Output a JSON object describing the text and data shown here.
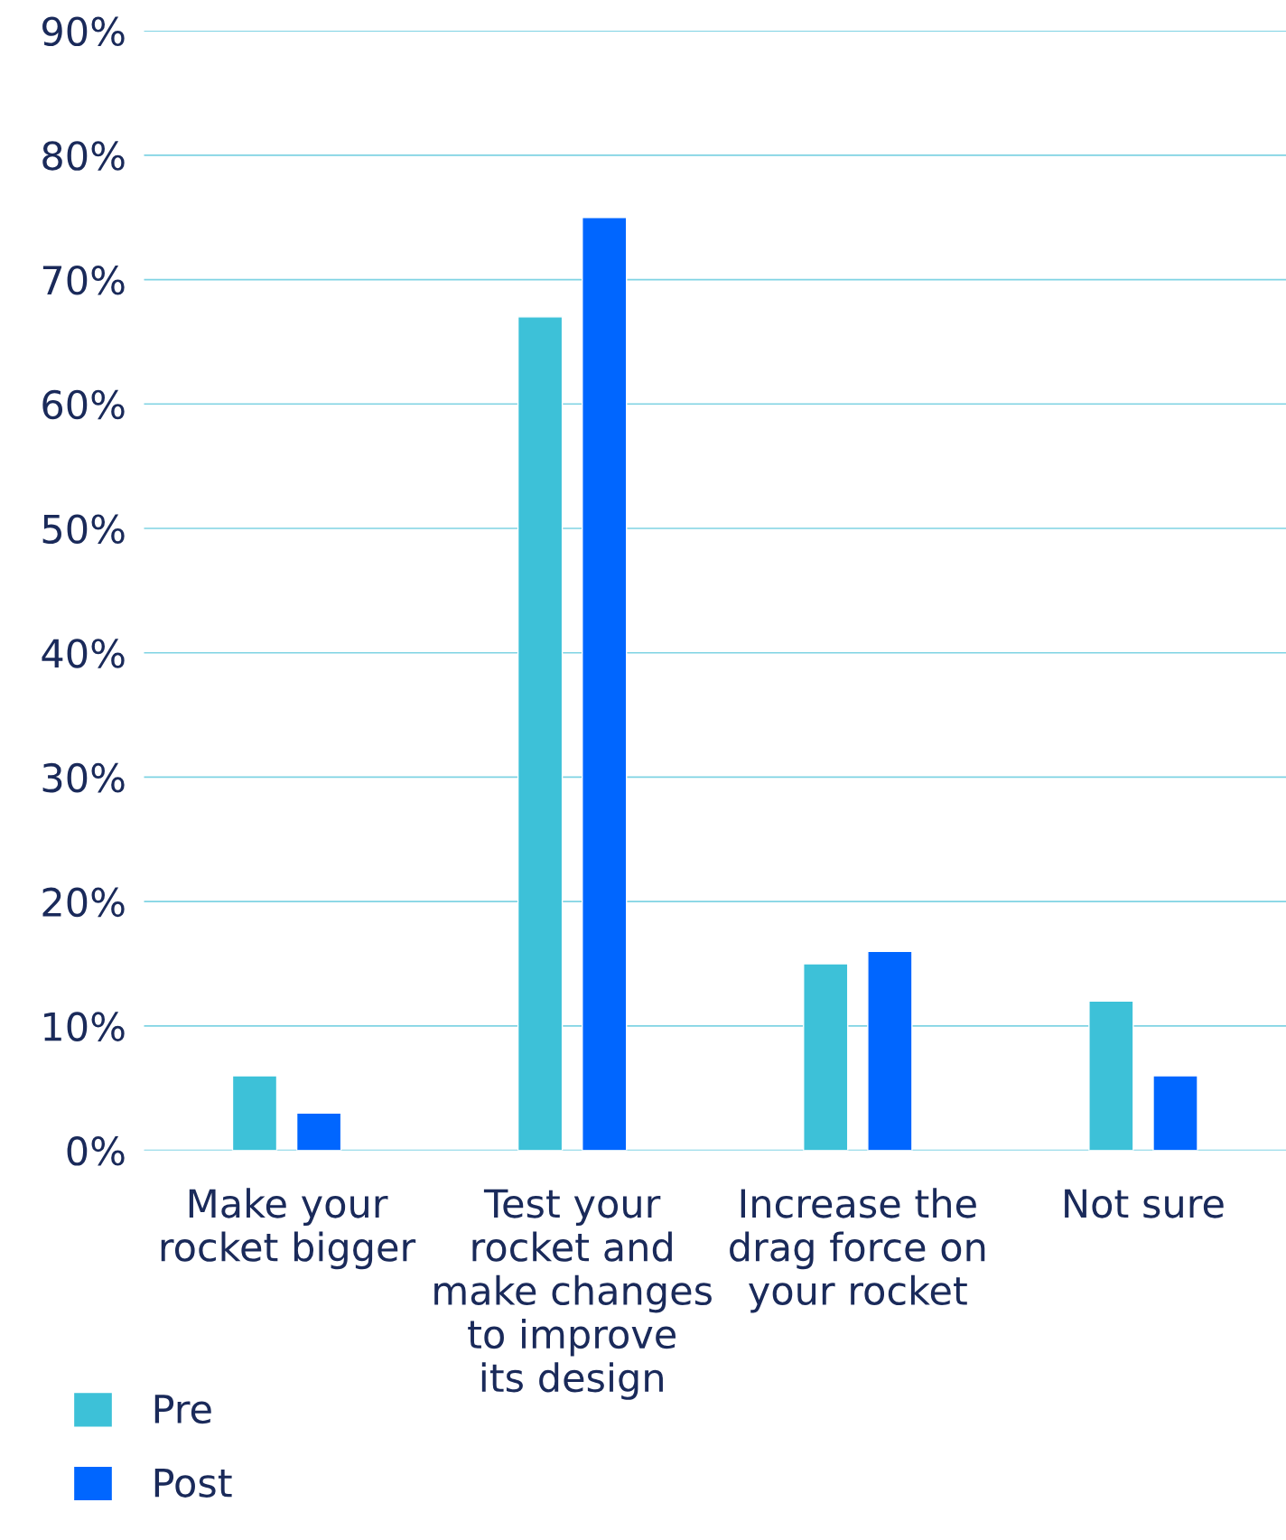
{
  "chart_data": {
    "type": "bar",
    "categories": [
      "Make your rocket bigger",
      "Test your rocket and make changes to improve its design",
      "Increase the drag force on your rocket",
      "Not sure"
    ],
    "series": [
      {
        "name": "Pre",
        "color": "#3dc1d8",
        "values": [
          6,
          67,
          15,
          12
        ]
      },
      {
        "name": "Post",
        "color": "#0066ff",
        "values": [
          3,
          75,
          16,
          6
        ]
      }
    ],
    "ylim": [
      0,
      90
    ],
    "yticks": [
      {
        "value": 0,
        "label": "0%"
      },
      {
        "value": 10,
        "label": "10%"
      },
      {
        "value": 20,
        "label": "20%"
      },
      {
        "value": 30,
        "label": "30%"
      },
      {
        "value": 40,
        "label": "40%"
      },
      {
        "value": 50,
        "label": "50%"
      },
      {
        "value": 60,
        "label": "60%"
      },
      {
        "value": 70,
        "label": "70%"
      },
      {
        "value": 80,
        "label": "80%"
      },
      {
        "value": 90,
        "label": "90%"
      }
    ],
    "grid": "y",
    "legend": "bottom left"
  }
}
